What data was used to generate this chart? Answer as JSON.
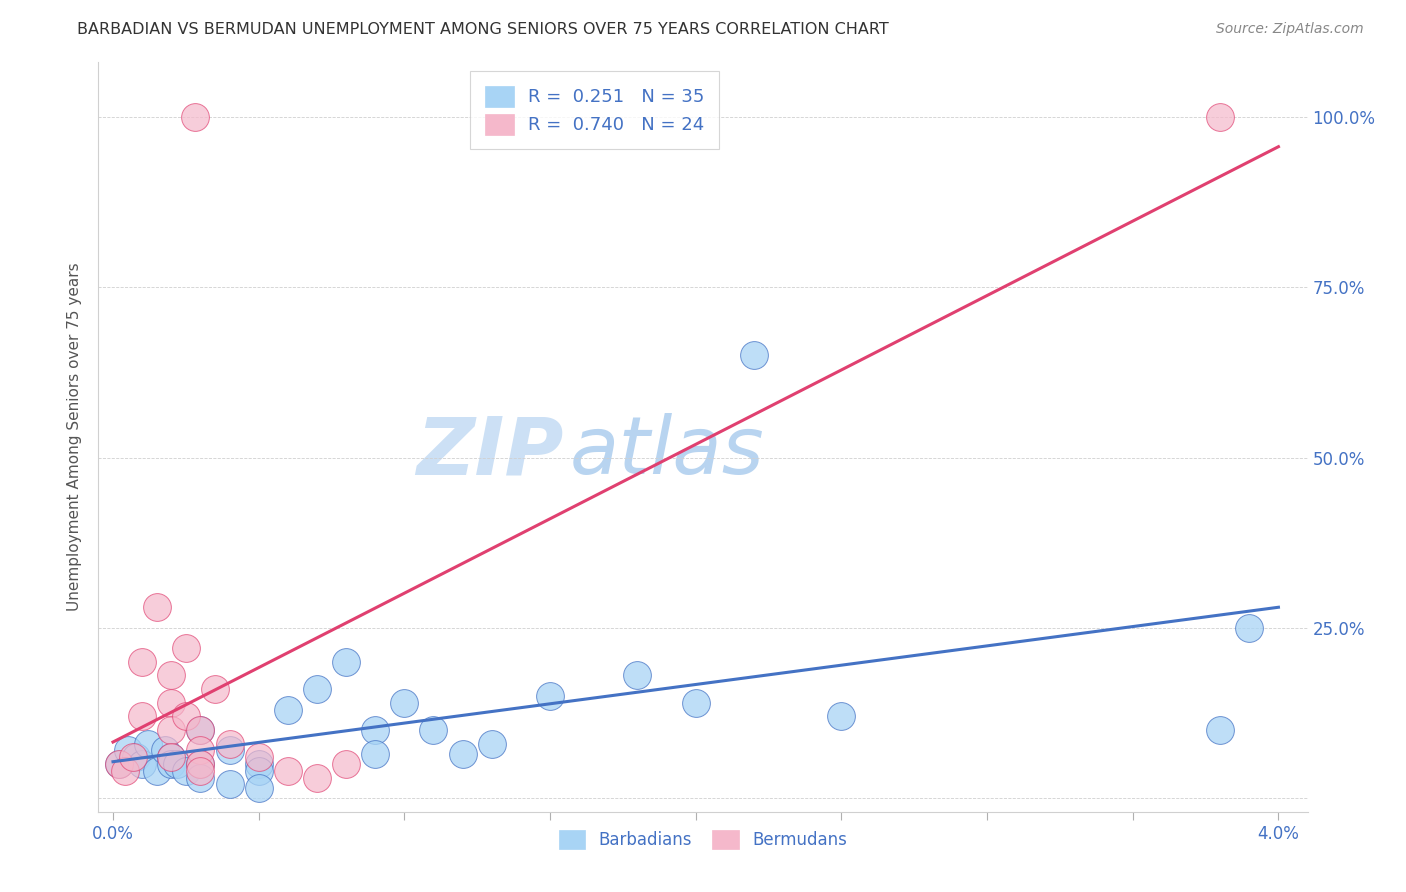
{
  "title": "BARBADIAN VS BERMUDAN UNEMPLOYMENT AMONG SENIORS OVER 75 YEARS CORRELATION CHART",
  "source": "Source: ZipAtlas.com",
  "ylabel": "Unemployment Among Seniors over 75 years",
  "yticks": [
    0.0,
    0.25,
    0.5,
    0.75,
    1.0
  ],
  "ytick_labels": [
    "",
    "25.0%",
    "50.0%",
    "75.0%",
    "100.0%"
  ],
  "xticks": [
    0.0,
    0.005,
    0.01,
    0.015,
    0.02,
    0.025,
    0.03,
    0.035,
    0.04
  ],
  "xlim": [
    -0.0005,
    0.041
  ],
  "ylim": [
    -0.02,
    1.08
  ],
  "legend_blue_R": "0.251",
  "legend_blue_N": "35",
  "legend_pink_R": "0.740",
  "legend_pink_N": "24",
  "blue_color": "#a8d4f5",
  "pink_color": "#f5b8cb",
  "blue_line_color": "#4472c4",
  "pink_line_color": "#e04070",
  "title_color": "#333333",
  "source_color": "#888888",
  "axis_color": "#4472c4",
  "watermark_zip_color": "#cce0f5",
  "watermark_atlas_color": "#b8d4f0",
  "barbadians_x": [
    0.0002,
    0.0005,
    0.0008,
    0.001,
    0.0012,
    0.0015,
    0.0018,
    0.002,
    0.002,
    0.0022,
    0.0025,
    0.003,
    0.003,
    0.003,
    0.004,
    0.004,
    0.005,
    0.005,
    0.005,
    0.006,
    0.007,
    0.008,
    0.009,
    0.009,
    0.01,
    0.011,
    0.012,
    0.013,
    0.015,
    0.018,
    0.02,
    0.022,
    0.025,
    0.038,
    0.039
  ],
  "barbadians_y": [
    0.05,
    0.07,
    0.06,
    0.05,
    0.08,
    0.04,
    0.07,
    0.06,
    0.05,
    0.05,
    0.04,
    0.05,
    0.1,
    0.03,
    0.07,
    0.02,
    0.05,
    0.04,
    0.015,
    0.13,
    0.16,
    0.2,
    0.1,
    0.065,
    0.14,
    0.1,
    0.065,
    0.08,
    0.15,
    0.18,
    0.14,
    0.65,
    0.12,
    0.1,
    0.25
  ],
  "bermudans_x": [
    0.0002,
    0.0004,
    0.0007,
    0.001,
    0.001,
    0.0015,
    0.002,
    0.002,
    0.002,
    0.002,
    0.0025,
    0.0025,
    0.003,
    0.003,
    0.003,
    0.003,
    0.0035,
    0.004,
    0.005,
    0.006,
    0.007,
    0.008,
    0.0028,
    0.038
  ],
  "bermudans_y": [
    0.05,
    0.04,
    0.06,
    0.2,
    0.12,
    0.28,
    0.18,
    0.14,
    0.1,
    0.06,
    0.22,
    0.12,
    0.1,
    0.07,
    0.05,
    0.04,
    0.16,
    0.08,
    0.06,
    0.04,
    0.03,
    0.05,
    1.0,
    1.0
  ]
}
